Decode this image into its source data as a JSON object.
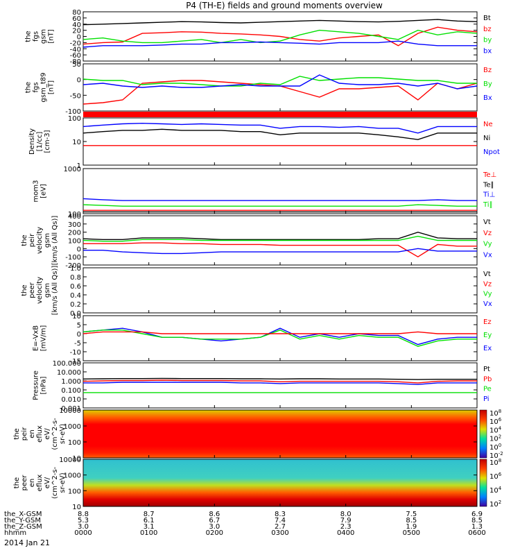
{
  "title": "P4 (TH-E) fields and ground moments overview",
  "date_label": "2014 Jan 21",
  "colors": {
    "black": "#000000",
    "red": "#ff0000",
    "green": "#00e000",
    "blue": "#0000ff"
  },
  "chart_data": {
    "type": "line",
    "x_axis": {
      "ticks": [
        "0000",
        "0100",
        "0200",
        "0300",
        "0400",
        "0500",
        "0600"
      ],
      "rows": [
        {
          "label": "the_X-GSM",
          "values": [
            "8.8",
            "8.7",
            "8.6",
            "8.3",
            "8.0",
            "7.5",
            "6.9"
          ]
        },
        {
          "label": "the_Y-GSM",
          "values": [
            "5.3",
            "6.1",
            "6.7",
            "7.4",
            "7.9",
            "8.5",
            "8.5"
          ]
        },
        {
          "label": "the_Z-GSM",
          "values": [
            "3.0",
            "3.1",
            "3.0",
            "2.7",
            "2.3",
            "1.9",
            "1.3"
          ]
        },
        {
          "label": "hhmm",
          "values": [
            "0000",
            "0100",
            "0200",
            "0300",
            "0400",
            "0500",
            "0600"
          ]
        }
      ]
    },
    "panels": [
      {
        "ylabel": [
          "the",
          "fgs",
          "gsm",
          "[nT]"
        ],
        "yticks": [
          "80",
          "60",
          "40",
          "20",
          "0",
          "-20",
          "-40",
          "-60",
          "-80"
        ],
        "ylim": [
          -80,
          80
        ],
        "legend": [
          {
            "name": "Bt",
            "color": "black"
          },
          {
            "name": "bz",
            "color": "red"
          },
          {
            "name": "by",
            "color": "green"
          },
          {
            "name": "bx",
            "color": "blue"
          }
        ],
        "series": [
          {
            "color": "black",
            "values": [
              38,
              40,
              42,
              44,
              46,
              48,
              47,
              45,
              44,
              46,
              48,
              50,
              52,
              50,
              48,
              47,
              49,
              52,
              55,
              50,
              48
            ]
          },
          {
            "color": "red",
            "values": [
              -25,
              -20,
              -18,
              10,
              12,
              15,
              14,
              10,
              8,
              5,
              0,
              -10,
              -15,
              -5,
              0,
              5,
              -30,
              10,
              30,
              20,
              15
            ]
          },
          {
            "color": "green",
            "values": [
              -10,
              -5,
              -15,
              -20,
              -20,
              -15,
              -10,
              -20,
              -10,
              -20,
              -15,
              5,
              20,
              15,
              10,
              0,
              -10,
              20,
              5,
              15,
              10
            ]
          },
          {
            "color": "blue",
            "values": [
              -35,
              -30,
              -30,
              -30,
              -28,
              -25,
              -25,
              -20,
              -20,
              -18,
              -20,
              -22,
              -25,
              -20,
              -20,
              -20,
              -15,
              -25,
              -30,
              -30,
              -30
            ]
          }
        ]
      },
      {
        "ylabel": [
          "the",
          "fgs",
          "gsm_t89",
          "[nT]"
        ],
        "yticks": [
          "50",
          "0",
          "-50",
          "-100"
        ],
        "ylim": [
          -120,
          50
        ],
        "legend": [
          {
            "name": "Bz",
            "color": "red"
          },
          {
            "name": "By",
            "color": "green"
          },
          {
            "name": "Bx",
            "color": "blue"
          }
        ],
        "series": [
          {
            "color": "red",
            "values": [
              -95,
              -90,
              -80,
              -20,
              -15,
              -10,
              -10,
              -15,
              -20,
              -25,
              -30,
              -50,
              -70,
              -40,
              -40,
              -35,
              -30,
              -80,
              -20,
              -40,
              -20
            ]
          },
          {
            "color": "green",
            "values": [
              -5,
              -10,
              -10,
              -25,
              -20,
              -20,
              -25,
              -30,
              -30,
              -20,
              -25,
              5,
              -10,
              -5,
              0,
              0,
              -5,
              -10,
              -10,
              -20,
              -20
            ]
          },
          {
            "color": "blue",
            "values": [
              -25,
              -20,
              -30,
              -35,
              -30,
              -35,
              -35,
              -30,
              -25,
              -30,
              -30,
              -30,
              10,
              -20,
              -25,
              -25,
              -20,
              -30,
              -20,
              -40,
              -30
            ]
          }
        ]
      },
      {
        "ylabel": [
          "Density",
          "[1/cc]",
          "[cm-3]"
        ],
        "yticks": [
          "100",
          "10",
          "1"
        ],
        "log": true,
        "ylim": [
          1,
          150
        ],
        "legend": [
          {
            "name": "Ne",
            "color": "red"
          },
          {
            "name": "Ni",
            "color": "black"
          },
          {
            "name": "Npot",
            "color": "blue"
          }
        ],
        "series": [
          {
            "color": "blue",
            "values": [
              60,
              70,
              80,
              85,
              80,
              75,
              80,
              75,
              70,
              70,
              50,
              60,
              60,
              55,
              60,
              50,
              50,
              30,
              60,
              60,
              60
            ]
          },
          {
            "color": "black",
            "values": [
              30,
              35,
              40,
              40,
              45,
              40,
              40,
              40,
              35,
              35,
              25,
              30,
              30,
              30,
              30,
              25,
              20,
              15,
              30,
              30,
              30
            ]
          },
          {
            "color": "red",
            "values": [
              8,
              8,
              8,
              8,
              8,
              8,
              8,
              8,
              8,
              8,
              8,
              8,
              8,
              8,
              8,
              8,
              8,
              8,
              8,
              8,
              8
            ]
          }
        ]
      },
      {
        "ylabel": [
          "mom3",
          "[eV]"
        ],
        "yticks": [
          "1000",
          "100"
        ],
        "log": true,
        "ylim": [
          40,
          10000
        ],
        "legend": [
          {
            "name": "Te⊥",
            "color": "red"
          },
          {
            "name": "Te∥",
            "color": "black"
          },
          {
            "name": "Ti⊥",
            "color": "blue"
          },
          {
            "name": "Ti∥",
            "color": "green"
          }
        ],
        "series": [
          {
            "color": "blue",
            "values": [
              250,
              220,
              200,
              200,
              200,
              200,
              200,
              200,
              200,
              200,
              200,
              200,
              200,
              200,
              200,
              200,
              200,
              200,
              220,
              200,
              200
            ]
          },
          {
            "color": "green",
            "values": [
              120,
              110,
              100,
              100,
              100,
              100,
              100,
              100,
              100,
              100,
              100,
              100,
              100,
              100,
              100,
              100,
              100,
              120,
              110,
              100,
              100
            ]
          },
          {
            "color": "red",
            "values": [
              60,
              60,
              60,
              60,
              60,
              60,
              60,
              60,
              60,
              60,
              60,
              60,
              60,
              60,
              60,
              60,
              60,
              60,
              60,
              60,
              60
            ]
          },
          {
            "color": "black",
            "values": [
              50,
              50,
              50,
              50,
              50,
              50,
              50,
              50,
              50,
              50,
              50,
              50,
              50,
              50,
              50,
              50,
              50,
              50,
              50,
              50,
              50
            ]
          }
        ]
      },
      {
        "ylabel": [
          "the",
          "peir",
          "velocity",
          "gsm",
          "[km/s (All Qs)]"
        ],
        "yticks": [
          "400",
          "300",
          "200",
          "100",
          "0",
          "-100",
          "-200"
        ],
        "ylim": [
          -200,
          400
        ],
        "legend": [
          {
            "name": "Vt",
            "color": "black"
          },
          {
            "name": "Vz",
            "color": "red"
          },
          {
            "name": "Vy",
            "color": "green"
          },
          {
            "name": "Vx",
            "color": "blue"
          }
        ],
        "series": [
          {
            "color": "black",
            "values": [
              120,
              110,
              110,
              130,
              130,
              130,
              120,
              110,
              110,
              110,
              110,
              110,
              110,
              110,
              110,
              120,
              120,
              200,
              130,
              120,
              120
            ]
          },
          {
            "color": "red",
            "values": [
              60,
              60,
              60,
              70,
              70,
              60,
              60,
              50,
              50,
              50,
              40,
              40,
              40,
              40,
              40,
              40,
              40,
              -100,
              50,
              30,
              30
            ]
          },
          {
            "color": "green",
            "values": [
              100,
              90,
              90,
              110,
              110,
              110,
              100,
              100,
              100,
              100,
              100,
              100,
              100,
              100,
              100,
              100,
              100,
              150,
              100,
              100,
              100
            ]
          },
          {
            "color": "blue",
            "values": [
              -20,
              -20,
              -40,
              -50,
              -60,
              -60,
              -50,
              -40,
              -40,
              -40,
              -40,
              -40,
              -40,
              -40,
              -40,
              -40,
              -40,
              0,
              -30,
              -30,
              -30
            ]
          }
        ]
      },
      {
        "ylabel": [
          "the",
          "peer",
          "velocity",
          "gsm",
          "[km/s (All Qs)]"
        ],
        "yticks": [
          "1.0",
          "0.8",
          "0.6",
          "0.4",
          "0.2",
          "0.0"
        ],
        "ylim": [
          0,
          1
        ],
        "legend": [
          {
            "name": "Vt",
            "color": "black"
          },
          {
            "name": "Vz",
            "color": "red"
          },
          {
            "name": "Vy",
            "color": "green"
          },
          {
            "name": "Vx",
            "color": "blue"
          }
        ],
        "series": []
      },
      {
        "ylabel": [
          "E=-VxB",
          "[mV/m]"
        ],
        "yticks": [
          "10",
          "5",
          "0",
          "-5",
          "-10",
          "-15"
        ],
        "ylim": [
          -15,
          10
        ],
        "legend": [
          {
            "name": "Ez",
            "color": "red"
          },
          {
            "name": "Ey",
            "color": "green"
          },
          {
            "name": "Ex",
            "color": "blue"
          }
        ],
        "series": [
          {
            "color": "blue",
            "values": [
              1,
              2,
              3,
              1,
              -2,
              -2,
              -3,
              -4,
              -3,
              -2,
              3,
              -2,
              0,
              -2,
              0,
              -1,
              -1,
              -6,
              -3,
              -2,
              -2
            ]
          },
          {
            "color": "green",
            "values": [
              1,
              2,
              2,
              0,
              -2,
              -2,
              -3,
              -3,
              -3,
              -2,
              2,
              -3,
              -1,
              -3,
              -1,
              -2,
              -2,
              -7,
              -4,
              -3,
              -3
            ]
          },
          {
            "color": "red",
            "values": [
              0,
              1,
              1,
              1,
              0,
              0,
              0,
              0,
              0,
              0,
              0,
              0,
              0,
              0,
              0,
              0,
              0,
              1,
              0,
              0,
              0
            ]
          }
        ]
      },
      {
        "ylabel": [
          "Pressure",
          "[nPa]"
        ],
        "yticks": [
          "100.000",
          "10.000",
          "1.000",
          "0.100",
          "0.010",
          "0.001"
        ],
        "log": true,
        "ylim": [
          0.001,
          100
        ],
        "legend": [
          {
            "name": "Pt",
            "color": "black"
          },
          {
            "name": "Pb",
            "color": "red"
          },
          {
            "name": "Pe",
            "color": "green"
          },
          {
            "name": "Pi",
            "color": "blue"
          }
        ],
        "series": [
          {
            "color": "black",
            "values": [
              1.6,
              1.7,
              1.8,
              1.8,
              1.9,
              1.8,
              1.8,
              1.8,
              1.7,
              1.7,
              1.6,
              1.7,
              1.7,
              1.6,
              1.6,
              1.6,
              1.5,
              1.4,
              1.5,
              1.5,
              1.5
            ]
          },
          {
            "color": "red",
            "values": [
              0.9,
              1.0,
              1.1,
              1.1,
              1.2,
              1.1,
              1.1,
              1.1,
              1.0,
              1.0,
              0.8,
              0.9,
              0.9,
              0.9,
              0.9,
              0.9,
              0.8,
              0.6,
              0.9,
              1.0,
              1.0
            ]
          },
          {
            "color": "blue",
            "values": [
              0.6,
              0.6,
              0.7,
              0.7,
              0.7,
              0.7,
              0.7,
              0.7,
              0.6,
              0.6,
              0.5,
              0.6,
              0.6,
              0.6,
              0.6,
              0.6,
              0.5,
              0.4,
              0.6,
              0.6,
              0.6
            ]
          },
          {
            "color": "green",
            "values": [
              0.05,
              0.05,
              0.05,
              0.05,
              0.05,
              0.05,
              0.05,
              0.05,
              0.05,
              0.05,
              0.05,
              0.05,
              0.05,
              0.05,
              0.05,
              0.05,
              0.05,
              0.05,
              0.05,
              0.05,
              0.05
            ]
          }
        ]
      },
      {
        "ylabel": [
          "the",
          "peir",
          "en",
          "eflux",
          "eV/",
          "(cm^2-s-",
          "sr-eV)"
        ],
        "yticks": [
          "10000",
          "1000",
          "100",
          "10"
        ],
        "type": "spectrogram",
        "colorbar": [
          "10^8",
          "10^6",
          "10^4",
          "10^2",
          "10^0",
          "10^-2"
        ]
      },
      {
        "ylabel": [
          "the",
          "peer",
          "en",
          "eflux",
          "eV/",
          "(cm^2-s-",
          "sr-eV)"
        ],
        "yticks": [
          "10000",
          "1000",
          "100",
          "10"
        ],
        "type": "spectrogram",
        "colorbar": [
          "10^8",
          "10^6",
          "10^4",
          "10^2"
        ]
      }
    ]
  }
}
